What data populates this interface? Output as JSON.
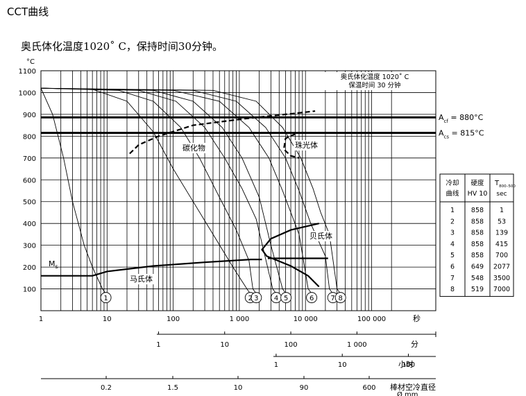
{
  "page": {
    "title": "CCT曲线",
    "subtitle": "奥氏体化温度1020˚ C，保持时间30分钟。"
  },
  "chart_data": {
    "type": "line",
    "title": "",
    "ylabel": "°C",
    "ylim": [
      0,
      1100
    ],
    "y_ticks": [
      "100",
      "200",
      "300",
      "400",
      "500",
      "600",
      "700",
      "800",
      "900",
      "1000",
      "1100"
    ],
    "x_scale": "log",
    "xlim_seconds": [
      1,
      100000
    ],
    "axes": [
      {
        "unit": "秒",
        "ticks": [
          {
            "value": 1,
            "label": "1"
          },
          {
            "value": 10,
            "label": "10"
          },
          {
            "value": 100,
            "label": "100"
          },
          {
            "value": 1000,
            "label": "1 000"
          },
          {
            "value": 10000,
            "label": "10 000"
          },
          {
            "value": 100000,
            "label": "100 000"
          }
        ]
      },
      {
        "unit": "分",
        "ticks": [
          {
            "value": 1,
            "label": "1"
          },
          {
            "value": 10,
            "label": "10"
          },
          {
            "value": 100,
            "label": "100"
          },
          {
            "value": 1000,
            "label": "1 000"
          }
        ]
      },
      {
        "unit": "小时",
        "ticks": [
          {
            "value": 1,
            "label": "1"
          },
          {
            "value": 10,
            "label": "10"
          },
          {
            "value": 100,
            "label": "100"
          }
        ]
      },
      {
        "unit": "棒材空冷直径",
        "unit2": "Ø mm",
        "ticks": [
          {
            "value": 0.2,
            "label": "0.2"
          },
          {
            "value": 1.5,
            "label": "1.5"
          },
          {
            "value": 10,
            "label": "10"
          },
          {
            "value": 90,
            "label": "90"
          },
          {
            "value": 600,
            "label": "600"
          }
        ]
      }
    ],
    "annotation": {
      "line1": "奥氏体化温度 1020˚ C",
      "line2": "保温时间 30 分钟"
    },
    "critical_temperatures": [
      {
        "name": "Ac_f",
        "sym": "A",
        "sub": "cf",
        "label": "= 880°C",
        "temp": 880
      },
      {
        "name": "Ac_s",
        "sym": "A",
        "sub": "cs",
        "label": "= 815°C",
        "temp": 815
      }
    ],
    "region_labels": {
      "carbide": "碳化物",
      "pearlite": "珠光体",
      "bainite": "贝氏体",
      "martensite": "马氏体",
      "ms": "M",
      "ms_sub": "s"
    },
    "cooling_curves": [
      {
        "name": "1",
        "points": [
          [
            1,
            1020
          ],
          [
            1.5,
            900
          ],
          [
            2.2,
            700
          ],
          [
            3,
            500
          ],
          [
            4.5,
            300
          ],
          [
            6,
            200
          ],
          [
            8.5,
            100
          ]
        ]
      },
      {
        "name": "2",
        "points": [
          [
            1,
            1020
          ],
          [
            6,
            1015
          ],
          [
            20,
            960
          ],
          [
            50,
            820
          ],
          [
            100,
            650
          ],
          [
            200,
            500
          ],
          [
            400,
            350
          ],
          [
            800,
            200
          ],
          [
            1300,
            100
          ]
        ]
      },
      {
        "name": "3",
        "points": [
          [
            1,
            1020
          ],
          [
            15,
            1010
          ],
          [
            50,
            960
          ],
          [
            130,
            840
          ],
          [
            250,
            700
          ],
          [
            500,
            520
          ],
          [
            900,
            370
          ],
          [
            1400,
            230
          ],
          [
            1600,
            100
          ]
        ]
      },
      {
        "name": "4",
        "points": [
          [
            1,
            1020
          ],
          [
            30,
            1010
          ],
          [
            110,
            960
          ],
          [
            300,
            840
          ],
          [
            600,
            700
          ],
          [
            1100,
            560
          ],
          [
            1800,
            420
          ],
          [
            3200,
            100
          ]
        ]
      },
      {
        "name": "5",
        "points": [
          [
            1,
            1020
          ],
          [
            50,
            1010
          ],
          [
            200,
            960
          ],
          [
            550,
            840
          ],
          [
            1100,
            700
          ],
          [
            2000,
            520
          ],
          [
            3000,
            300
          ],
          [
            4500,
            100
          ]
        ]
      },
      {
        "name": "6",
        "points": [
          [
            1,
            1020
          ],
          [
            100,
            1010
          ],
          [
            500,
            960
          ],
          [
            1400,
            840
          ],
          [
            2800,
            700
          ],
          [
            4500,
            550
          ],
          [
            8000,
            350
          ],
          [
            11000,
            100
          ]
        ]
      },
      {
        "name": "7",
        "points": [
          [
            1,
            1020
          ],
          [
            200,
            1010
          ],
          [
            900,
            960
          ],
          [
            2500,
            840
          ],
          [
            5000,
            700
          ],
          [
            8000,
            550
          ],
          [
            12000,
            400
          ],
          [
            20000,
            250
          ],
          [
            23000,
            100
          ]
        ]
      },
      {
        "name": "8",
        "points": [
          [
            1,
            1020
          ],
          [
            400,
            1010
          ],
          [
            1800,
            960
          ],
          [
            4500,
            840
          ],
          [
            8500,
            700
          ],
          [
            13000,
            560
          ],
          [
            17000,
            450
          ],
          [
            23000,
            350
          ],
          [
            30000,
            100
          ]
        ]
      }
    ],
    "ms_line": {
      "name": "Ms",
      "points": [
        [
          1,
          160
        ],
        [
          6,
          160
        ],
        [
          10,
          180
        ],
        [
          50,
          205
        ],
        [
          300,
          222
        ],
        [
          1500,
          235
        ],
        [
          2200,
          235
        ]
      ]
    },
    "bainite_boundary": {
      "name": "bainite",
      "points": [
        [
          16000,
          400
        ],
        [
          6000,
          370
        ],
        [
          3000,
          330
        ],
        [
          2200,
          280
        ],
        [
          2600,
          250
        ],
        [
          6000,
          205
        ],
        [
          11000,
          160
        ],
        [
          16000,
          110
        ]
      ]
    },
    "bainite_upper_branch": {
      "name": "bainite-end",
      "points": [
        [
          2700,
          240
        ],
        [
          22000,
          240
        ]
      ]
    },
    "carbide_boundary": {
      "name": "carbide",
      "points": [
        [
          22,
          720
        ],
        [
          30,
          760
        ],
        [
          60,
          800
        ],
        [
          200,
          850
        ],
        [
          1200,
          880
        ],
        [
          5000,
          900
        ],
        [
          14000,
          915
        ]
      ]
    },
    "pearlite_nose": {
      "name": "pearlite",
      "points": [
        [
          7000,
          810
        ],
        [
          5000,
          790
        ],
        [
          4700,
          740
        ],
        [
          6000,
          710
        ],
        [
          8000,
          700
        ]
      ]
    },
    "table": {
      "headers": [
        [
          "冷却",
          "曲线"
        ],
        [
          "硬度",
          "HV 10"
        ],
        [
          "T",
          "800–500",
          "sec"
        ]
      ],
      "rows": [
        [
          "1",
          "858",
          "1"
        ],
        [
          "2",
          "858",
          "53"
        ],
        [
          "3",
          "858",
          "139"
        ],
        [
          "4",
          "858",
          "415"
        ],
        [
          "5",
          "858",
          "700"
        ],
        [
          "6",
          "649",
          "2077"
        ],
        [
          "7",
          "548",
          "3500"
        ],
        [
          "8",
          "519",
          "7000"
        ]
      ]
    }
  }
}
